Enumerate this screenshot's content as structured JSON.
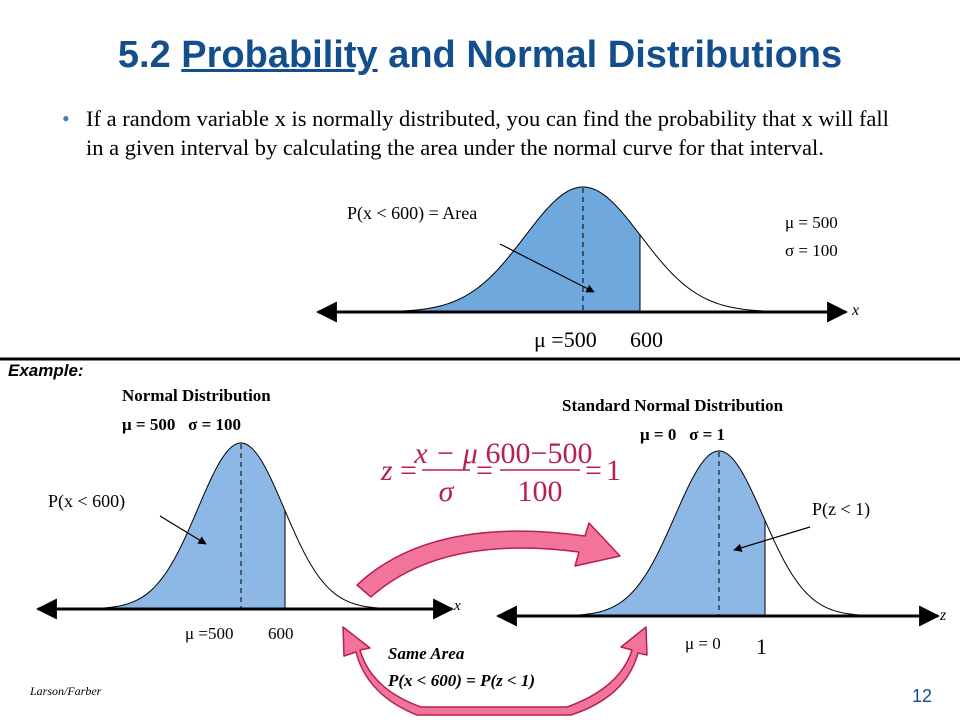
{
  "slide": {
    "title_prefix": "5.2 ",
    "title_underlined": "Probability",
    "title_suffix": " and Normal Distributions",
    "bullet_char": "•",
    "bullet_text": "If a random variable x is normally distributed, you can find the probability that x will fall in a given interval by calculating the area under the normal curve for that interval.",
    "footer_author": "Larson/Farber",
    "page_number": "12"
  },
  "top_figure": {
    "area_label": "P(x < 600) = Area",
    "mu_param": "μ = 500",
    "sigma_param": "σ = 100",
    "axis_var": "x",
    "tick_mean": "μ =500",
    "tick_value": "600",
    "mean": 500,
    "sd": 100,
    "shade_upper": 600
  },
  "example": {
    "label": "Example:",
    "left": {
      "heading": "Normal Distribution",
      "params": "μ = 500   σ = 100",
      "area_label": "P(x < 600)",
      "axis_var": "x",
      "tick_mean": "μ =500",
      "tick_value": "600"
    },
    "right": {
      "heading": "Standard Normal Distribution",
      "params": "μ = 0   σ = 1",
      "area_label": "P(z < 1)",
      "axis_var": "z",
      "tick_mean": "μ = 0",
      "tick_value": "1"
    },
    "formula": {
      "lhs": "z",
      "frac1_num": "x − μ",
      "frac1_den": "σ",
      "frac2_num": "600−500",
      "frac2_den": "100",
      "result": "1"
    },
    "same_area_title": "Same Area",
    "same_area_eq": "P(x < 600) = P(z < 1)"
  },
  "colors": {
    "title": "#124F8C",
    "bullet": "#3F81C4",
    "shade_top": "#6FA8DC",
    "shade_example": "#8DB8E6",
    "arrow_fill": "#F2749B",
    "arrow_stroke": "#B8204E",
    "formula": "#B8204E"
  }
}
